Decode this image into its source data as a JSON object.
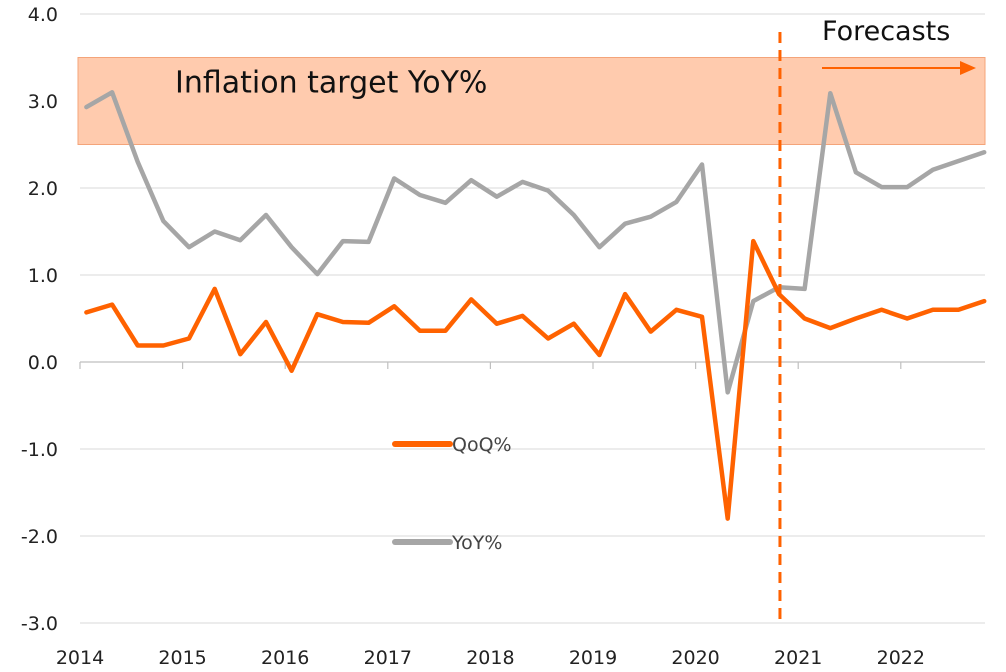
{
  "chart_data": {
    "type": "line",
    "title": "",
    "xlabel": "",
    "ylabel": "",
    "ylim": [
      -3.0,
      4.0
    ],
    "y_ticks": [
      "4.0",
      "3.0",
      "2.0",
      "1.0",
      "0.0",
      "-1.0",
      "-2.0",
      "-3.0"
    ],
    "x_ticks": [
      "2014",
      "2015",
      "2016",
      "2017",
      "2018",
      "2019",
      "2020",
      "2021",
      "2022"
    ],
    "grid": "horizontal",
    "legend_position": "center-left",
    "x": [
      "2014Q1",
      "2014Q2",
      "2014Q3",
      "2014Q4",
      "2015Q1",
      "2015Q2",
      "2015Q3",
      "2015Q4",
      "2016Q1",
      "2016Q2",
      "2016Q3",
      "2016Q4",
      "2017Q1",
      "2017Q2",
      "2017Q3",
      "2017Q4",
      "2018Q1",
      "2018Q2",
      "2018Q3",
      "2018Q4",
      "2019Q1",
      "2019Q2",
      "2019Q3",
      "2019Q4",
      "2020Q1",
      "2020Q2",
      "2020Q3",
      "2020Q4",
      "2021Q1",
      "2021Q2",
      "2021Q3",
      "2021Q4",
      "2022Q1",
      "2022Q2",
      "2022Q3",
      "2022Q4"
    ],
    "series": [
      {
        "name": "QoQ%",
        "color": "#FF6200",
        "values": [
          0.57,
          0.66,
          0.19,
          0.19,
          0.27,
          0.84,
          0.09,
          0.46,
          -0.1,
          0.55,
          0.46,
          0.45,
          0.64,
          0.36,
          0.36,
          0.72,
          0.44,
          0.53,
          0.27,
          0.44,
          0.08,
          0.78,
          0.35,
          0.6,
          0.52,
          -1.8,
          1.39,
          0.78,
          0.5,
          0.39,
          0.5,
          0.6,
          0.5,
          0.6,
          0.6,
          0.7
        ]
      },
      {
        "name": "YoY%",
        "color": "#A6A6A6",
        "values": [
          2.93,
          3.1,
          2.3,
          1.62,
          1.32,
          1.5,
          1.4,
          1.69,
          1.32,
          1.01,
          1.39,
          1.38,
          2.11,
          1.92,
          1.83,
          2.09,
          1.9,
          2.07,
          1.97,
          1.69,
          1.32,
          1.59,
          1.67,
          1.84,
          2.27,
          -0.35,
          0.7,
          0.86,
          0.84,
          3.09,
          2.18,
          2.01,
          2.01,
          2.21,
          2.31,
          2.41
        ]
      }
    ],
    "target_band": {
      "label": "Inflation target YoY%",
      "y_low": 2.5,
      "y_high": 3.5,
      "color": "#FFCBAE"
    },
    "forecast": {
      "label": "Forecasts",
      "start": "2020Q4",
      "color": "#FF6200"
    }
  }
}
